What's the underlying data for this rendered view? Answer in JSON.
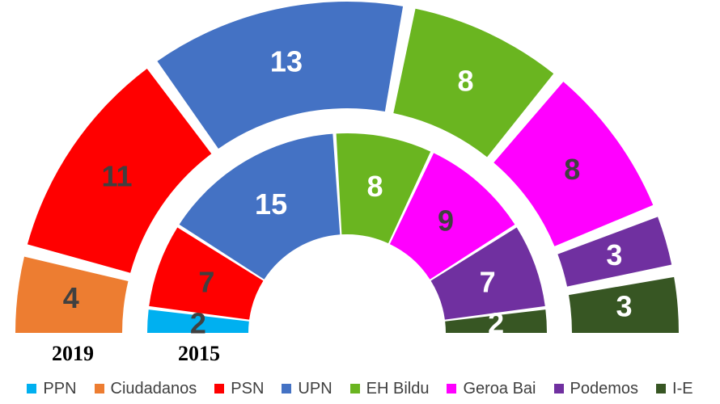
{
  "chart_data": {
    "type": "parliament-hemicycle",
    "legend": [
      {
        "name": "PPN",
        "color": "#00b0f0"
      },
      {
        "name": "Ciudadanos",
        "color": "#ed7d31"
      },
      {
        "name": "PSN",
        "color": "#ff0000"
      },
      {
        "name": "UPN",
        "color": "#4472c4"
      },
      {
        "name": "EH Bildu",
        "color": "#6ab520"
      },
      {
        "name": "Geroa Bai",
        "color": "#ff00ff"
      },
      {
        "name": "Podemos",
        "color": "#7030a0"
      },
      {
        "name": "I-E",
        "color": "#375623"
      }
    ],
    "rings": [
      {
        "year": "2019",
        "total": 50,
        "seats": [
          {
            "party": "Ciudadanos",
            "value": 4
          },
          {
            "party": "PSN",
            "value": 11
          },
          {
            "party": "UPN",
            "value": 13
          },
          {
            "party": "EH Bildu",
            "value": 8
          },
          {
            "party": "Geroa Bai",
            "value": 8
          },
          {
            "party": "Podemos",
            "value": 3
          },
          {
            "party": "I-E",
            "value": 3
          }
        ]
      },
      {
        "year": "2015",
        "total": 50,
        "seats": [
          {
            "party": "PPN",
            "value": 2
          },
          {
            "party": "PSN",
            "value": 7
          },
          {
            "party": "UPN",
            "value": 15
          },
          {
            "party": "EH Bildu",
            "value": 8
          },
          {
            "party": "Geroa Bai",
            "value": 9
          },
          {
            "party": "Podemos",
            "value": 7
          },
          {
            "party": "I-E",
            "value": 2
          }
        ]
      }
    ]
  }
}
